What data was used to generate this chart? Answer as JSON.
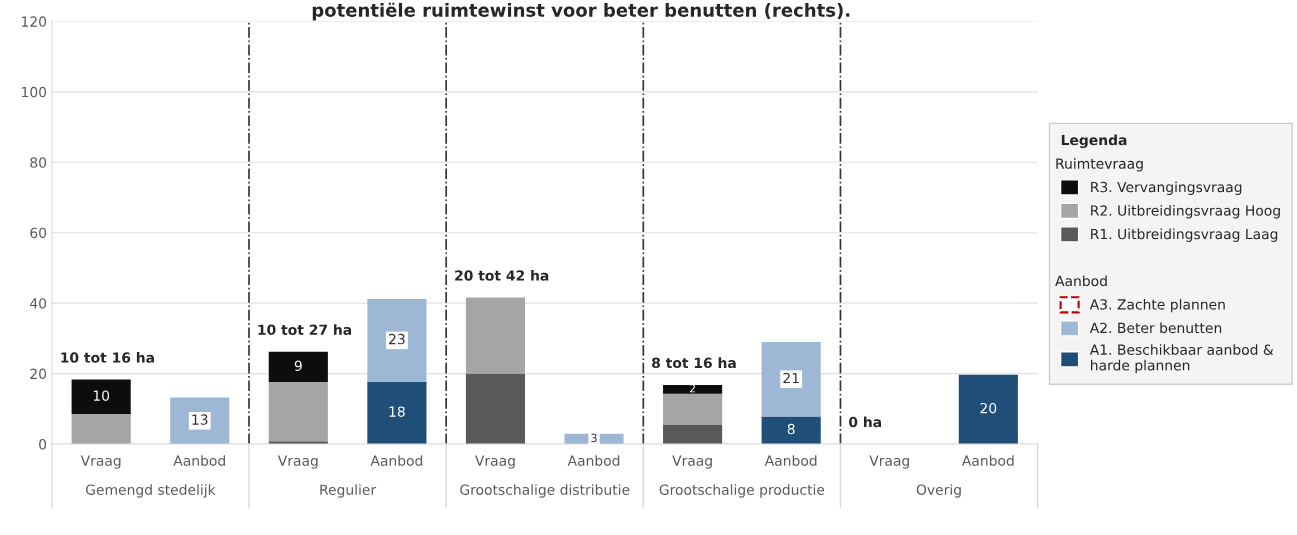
{
  "chart_data": {
    "type": "bar",
    "stacked": true,
    "title": "potentiële ruimtewinst voor beter benutten (rechts).",
    "categories": [
      "Vraag",
      "Aanbod",
      "Vraag",
      "Aanbod",
      "Vraag",
      "Aanbod",
      "Vraag",
      "Aanbod",
      "Vraag",
      "Aanbod"
    ],
    "series": [
      {
        "name": "R1. Uitbreidingsvraag Laag",
        "color": "#595959",
        "values": [
          null,
          null,
          0.8,
          null,
          20,
          null,
          5.4,
          null,
          null,
          null
        ]
      },
      {
        "name": "R2. Uitbreidingsvraag Hoog",
        "color": "#a5a5a5",
        "values": [
          8.5,
          null,
          16.8,
          null,
          21.6,
          null,
          8.9,
          null,
          null,
          null
        ]
      },
      {
        "name": "R3. Vervangingsvraag",
        "color": "#0d0d0d",
        "values": [
          9.8,
          null,
          8.6,
          null,
          null,
          null,
          2.5,
          null,
          null,
          null
        ],
        "value_labels": [
          "10",
          null,
          "9",
          null,
          null,
          null,
          "2",
          null,
          null,
          null
        ]
      },
      {
        "name": "A1. Beschikbaar aanbod & harde plannen",
        "color": "#1f4e79",
        "values": [
          null,
          null,
          null,
          17.7,
          null,
          null,
          null,
          7.8,
          null,
          19.7
        ],
        "value_labels": [
          null,
          null,
          null,
          "18",
          null,
          null,
          null,
          "8",
          null,
          "20"
        ]
      },
      {
        "name": "A2. Beter benutten",
        "color": "#9db7d5",
        "values": [
          null,
          13.2,
          null,
          23.5,
          null,
          2.9,
          null,
          21.2,
          null,
          null
        ],
        "value_labels": [
          null,
          "13",
          null,
          "23",
          null,
          "3",
          null,
          "21",
          null,
          null
        ]
      },
      {
        "name": "A3. Zachte plannen",
        "color": "#c00000",
        "line_style": "dashed",
        "values": [
          null,
          0,
          null,
          0,
          null,
          0,
          null,
          0,
          null,
          0
        ]
      }
    ],
    "ylim": [
      0,
      120
    ],
    "yticks": [
      0,
      20,
      40,
      60,
      80,
      100,
      120
    ],
    "grid": "y",
    "legend": "right",
    "legend_title": "Legenda",
    "annotations": [
      "10 tot 16 ha",
      "10 tot 27 ha",
      "20 tot 42 ha",
      "8 tot 16 ha",
      "0 ha",
      "Gemengd stedelijk",
      "Regulier",
      "Grootschalige distributie",
      "Grootschalige productie",
      "Overig",
      "Ruimtevraag",
      "Aanbod"
    ]
  }
}
